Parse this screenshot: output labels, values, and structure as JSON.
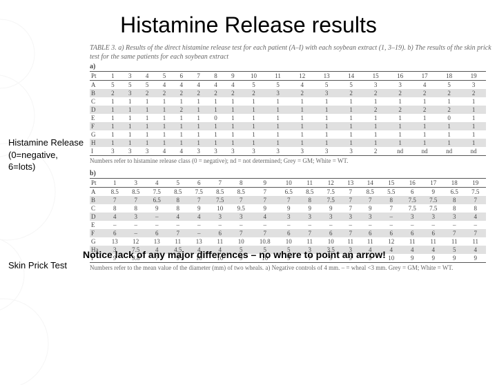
{
  "title": "Histamine Release results",
  "caption": "TABLE 3. a) Results of the direct histamine release test for each patient (A–I) with each soybean extract (1, 3–19). b) The results of the skin prick test for the same patients for each soybean extract",
  "side_labels": {
    "hr": "Histamine Release (0=negative, 6=lots)",
    "spt": "Skin Prick Test"
  },
  "table_a": {
    "header_label": "a)",
    "col_header": "Pt",
    "cols": [
      "1",
      "3",
      "4",
      "5",
      "6",
      "7",
      "8",
      "9",
      "10",
      "11",
      "12",
      "13",
      "14",
      "15",
      "16",
      "17",
      "18",
      "19"
    ],
    "rows": [
      {
        "id": "A",
        "grey": false,
        "v": [
          "5",
          "5",
          "5",
          "4",
          "4",
          "4",
          "4",
          "4",
          "5",
          "5",
          "4",
          "5",
          "5",
          "3",
          "3",
          "4",
          "5",
          "3"
        ]
      },
      {
        "id": "B",
        "grey": true,
        "v": [
          "2",
          "3",
          "2",
          "2",
          "2",
          "2",
          "2",
          "2",
          "2",
          "3",
          "2",
          "3",
          "2",
          "2",
          "2",
          "2",
          "2",
          "2"
        ]
      },
      {
        "id": "C",
        "grey": false,
        "v": [
          "1",
          "1",
          "1",
          "1",
          "1",
          "1",
          "1",
          "1",
          "1",
          "1",
          "1",
          "1",
          "1",
          "1",
          "1",
          "1",
          "1",
          "1"
        ]
      },
      {
        "id": "D",
        "grey": true,
        "v": [
          "1",
          "1",
          "1",
          "1",
          "2",
          "1",
          "1",
          "1",
          "1",
          "1",
          "1",
          "1",
          "1",
          "2",
          "2",
          "2",
          "2",
          "1"
        ]
      },
      {
        "id": "E",
        "grey": false,
        "v": [
          "1",
          "1",
          "1",
          "1",
          "1",
          "1",
          "0",
          "1",
          "1",
          "1",
          "1",
          "1",
          "1",
          "1",
          "1",
          "1",
          "0",
          "1"
        ]
      },
      {
        "id": "F",
        "grey": true,
        "v": [
          "1",
          "1",
          "1",
          "1",
          "1",
          "1",
          "1",
          "1",
          "1",
          "1",
          "1",
          "1",
          "1",
          "1",
          "1",
          "1",
          "1",
          "1"
        ]
      },
      {
        "id": "G",
        "grey": false,
        "v": [
          "1",
          "1",
          "1",
          "1",
          "1",
          "1",
          "1",
          "1",
          "1",
          "1",
          "1",
          "1",
          "1",
          "1",
          "1",
          "1",
          "1",
          "1"
        ]
      },
      {
        "id": "H",
        "grey": true,
        "v": [
          "1",
          "1",
          "1",
          "1",
          "1",
          "1",
          "1",
          "1",
          "1",
          "1",
          "1",
          "1",
          "1",
          "1",
          "1",
          "1",
          "1",
          "1"
        ]
      },
      {
        "id": "I",
        "grey": false,
        "v": [
          "3",
          "3",
          "3",
          "4",
          "4",
          "3",
          "3",
          "3",
          "3",
          "3",
          "3",
          "3",
          "3",
          "2",
          "nd",
          "nd",
          "nd",
          "nd"
        ]
      }
    ],
    "footnote": "Numbers refer to histamine release class (0 = negative); nd = not determined; Grey = GM; White = WT."
  },
  "table_b": {
    "header_label": "b)",
    "col_header": "Pt",
    "cols": [
      "1",
      "3",
      "4",
      "5",
      "6",
      "7",
      "8",
      "9",
      "10",
      "11",
      "12",
      "13",
      "14",
      "15",
      "16",
      "17",
      "18",
      "19"
    ],
    "rows": [
      {
        "id": "A",
        "grey": false,
        "v": [
          "8.5",
          "8.5",
          "7.5",
          "8.5",
          "7.5",
          "8.5",
          "8.5",
          "7",
          "6.5",
          "8.5",
          "7.5",
          "7",
          "8.5",
          "5.5",
          "6",
          "9",
          "6.5",
          "7.5"
        ]
      },
      {
        "id": "B",
        "grey": true,
        "v": [
          "7",
          "7",
          "6.5",
          "8",
          "7",
          "7.5",
          "7",
          "7",
          "7",
          "8",
          "7.5",
          "7",
          "7",
          "8",
          "7.5",
          "7.5",
          "8",
          "7"
        ]
      },
      {
        "id": "C",
        "grey": false,
        "v": [
          "8",
          "8",
          "9",
          "8",
          "9",
          "10",
          "9.5",
          "9",
          "9",
          "9",
          "9",
          "7",
          "9",
          "7",
          "7.5",
          "7.5",
          "8",
          "8"
        ]
      },
      {
        "id": "D",
        "grey": true,
        "v": [
          "4",
          "3",
          "–",
          "4",
          "4",
          "3",
          "3",
          "4",
          "3",
          "3",
          "3",
          "3",
          "3",
          "–",
          "3",
          "3",
          "3",
          "4"
        ]
      },
      {
        "id": "E",
        "grey": false,
        "v": [
          "–",
          "–",
          "–",
          "–",
          "–",
          "–",
          "–",
          "–",
          "–",
          "–",
          "–",
          "–",
          "–",
          "–",
          "–",
          "–",
          "–",
          "–"
        ]
      },
      {
        "id": "F",
        "grey": true,
        "v": [
          "6",
          "–",
          "6",
          "7",
          "–",
          "6",
          "7",
          "7",
          "6",
          "7",
          "6",
          "7",
          "6",
          "6",
          "6",
          "6",
          "7",
          "7"
        ]
      },
      {
        "id": "G",
        "grey": false,
        "v": [
          "13",
          "12",
          "13",
          "11",
          "13",
          "11",
          "10",
          "10.8",
          "10",
          "11",
          "10",
          "11",
          "11",
          "12",
          "11",
          "11",
          "11",
          "11"
        ]
      },
      {
        "id": "Ha",
        "grey": true,
        "v": [
          "3",
          "7.5",
          "4",
          "4.5",
          "4",
          "4",
          "5",
          "5",
          "5",
          "3",
          "3.5",
          "3",
          "4",
          "4",
          "4",
          "4",
          "5",
          "4"
        ]
      },
      {
        "id": "I",
        "grey": false,
        "v": [
          "9",
          "9.8",
          "7",
          "9",
          "10",
          "10",
          "9",
          "10",
          "9",
          "7",
          "9",
          "9",
          "9",
          "10",
          "9",
          "9",
          "9",
          "9"
        ]
      }
    ],
    "footnote": "Numbers refer to the mean value of the diameter (mm) of two wheals. a) Negative controls of 4 mm. – = wheal <3 mm. Grey = GM; White = WT."
  },
  "notice": "Notice lack of any major differences – no where to point an arrow!",
  "colors": {
    "grey_row": "#e0e0e0",
    "text": "#444444",
    "caption": "#666666",
    "bg": "#ffffff"
  }
}
